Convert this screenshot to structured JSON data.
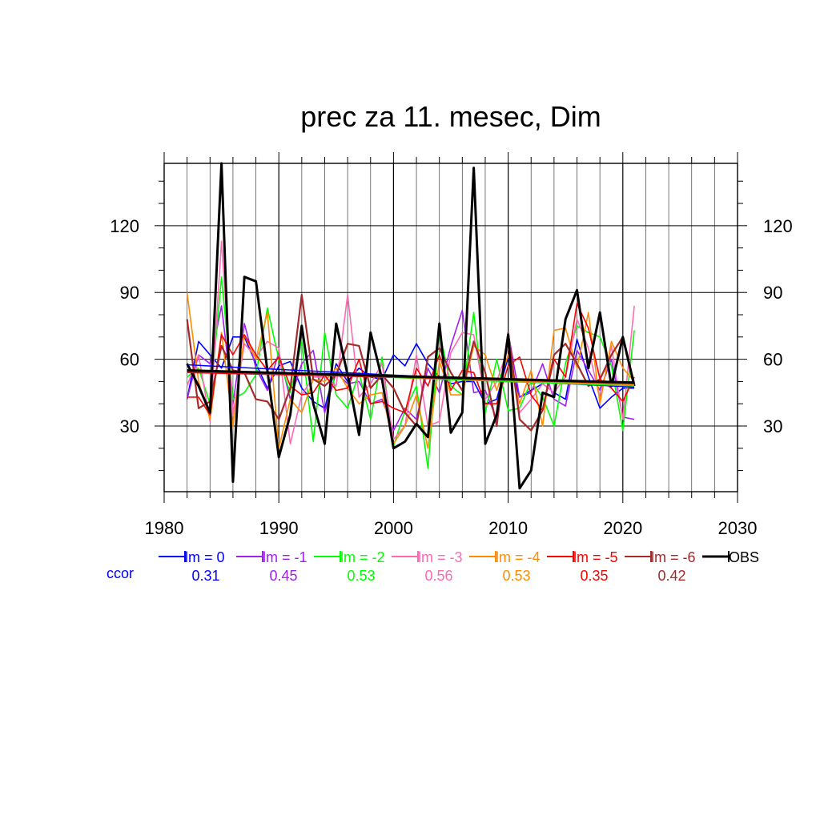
{
  "chart_data": {
    "type": "line",
    "title": "prec za 11. mesec, Dim",
    "xlabel": "",
    "ylabel": "",
    "xlim": [
      1980,
      2030
    ],
    "ylim": [
      0.5,
      148
    ],
    "x_ticks": [
      1980,
      1990,
      2000,
      2010,
      2020,
      2030
    ],
    "y_ticks": [
      30,
      60,
      90,
      120
    ],
    "grid": true,
    "legend_position": "bottom",
    "ccor_label": "ccor",
    "years": [
      1982,
      1983,
      1984,
      1985,
      1986,
      1987,
      1988,
      1989,
      1990,
      1991,
      1992,
      1993,
      1994,
      1995,
      1996,
      1997,
      1998,
      1999,
      2000,
      2001,
      2002,
      2003,
      2004,
      2005,
      2006,
      2007,
      2008,
      2009,
      2010,
      2011,
      2012,
      2013,
      2014,
      2015,
      2016,
      2017,
      2018,
      2019,
      2020,
      2021
    ],
    "series": [
      {
        "name": "lm = 0",
        "color": "#0000ff",
        "width": 1.6,
        "ccor": "0.31",
        "values": [
          42,
          68,
          62,
          56,
          70,
          70,
          58,
          47,
          57,
          59,
          47,
          41,
          38,
          58,
          50,
          56,
          52,
          51,
          62,
          57,
          67,
          58,
          52,
          49,
          50,
          50,
          40,
          42,
          61,
          43,
          46,
          49,
          45,
          42,
          69,
          52,
          38,
          43,
          47,
          47
        ],
        "trend": [
          57.5,
          47.5
        ]
      },
      {
        "name": "lm = -1",
        "color": "#a020f0",
        "width": 1.6,
        "ccor": "0.45",
        "values": [
          42,
          62,
          58,
          84,
          40,
          76,
          56,
          46,
          63,
          42,
          58,
          64,
          36,
          54,
          49,
          50,
          40,
          42,
          28,
          38,
          33,
          56,
          45,
          66,
          82,
          45,
          46,
          33,
          72,
          43,
          45,
          58,
          42,
          39,
          64,
          55,
          46,
          60,
          34,
          33
        ],
        "trend": [
          55.0,
          49.0
        ]
      },
      {
        "name": "lm = -2",
        "color": "#00ff00",
        "width": 1.6,
        "ccor": "0.53",
        "values": [
          52,
          56,
          40,
          97,
          42,
          45,
          53,
          83,
          60,
          45,
          68,
          23,
          72,
          44,
          38,
          54,
          33,
          61,
          21,
          37,
          48,
          11,
          73,
          48,
          44,
          81,
          36,
          60,
          37,
          38,
          50,
          43,
          30,
          58,
          75,
          72,
          70,
          57,
          28,
          73
        ],
        "trend": [
          55.0,
          48.0
        ]
      },
      {
        "name": "lm = -3",
        "color": "#ff69b4",
        "width": 1.6,
        "ccor": "0.56",
        "values": [
          48,
          62,
          32,
          113,
          35,
          67,
          61,
          68,
          65,
          22,
          44,
          52,
          52,
          48,
          89,
          43,
          49,
          58,
          24,
          30,
          62,
          30,
          32,
          63,
          72,
          71,
          42,
          50,
          65,
          36,
          42,
          49,
          45,
          52,
          78,
          65,
          42,
          66,
          33,
          84
        ],
        "trend": [
          55.0,
          49.0
        ]
      },
      {
        "name": "lm = -4",
        "color": "#ff8c00",
        "width": 1.6,
        "ccor": "0.53",
        "values": [
          90,
          50,
          33,
          72,
          30,
          71,
          60,
          81,
          20,
          42,
          36,
          51,
          50,
          56,
          47,
          40,
          44,
          45,
          22,
          30,
          44,
          20,
          59,
          44,
          44,
          66,
          62,
          46,
          62,
          40,
          55,
          30,
          73,
          74,
          56,
          81,
          40,
          68,
          56,
          50
        ],
        "trend": [
          55.0,
          48.5
        ]
      },
      {
        "name": "lm = -5",
        "color": "#ff0000",
        "width": 1.6,
        "ccor": "0.35",
        "values": [
          43,
          43,
          35,
          71,
          62,
          71,
          62,
          55,
          61,
          48,
          44,
          45,
          53,
          46,
          47,
          60,
          40,
          41,
          38,
          36,
          56,
          48,
          62,
          46,
          55,
          54,
          40,
          40,
          57,
          61,
          44,
          37,
          60,
          52,
          85,
          74,
          51,
          47,
          41,
          52
        ],
        "trend": [
          54.0,
          49.5
        ]
      },
      {
        "name": "lm = -6",
        "color": "#a52a2a",
        "width": 2.2,
        "ccor": "0.42",
        "values": [
          78,
          38,
          41,
          66,
          55,
          54,
          42,
          41,
          33,
          47,
          89,
          51,
          48,
          53,
          67,
          66,
          47,
          53,
          47,
          36,
          30,
          61,
          65,
          54,
          46,
          68,
          54,
          30,
          72,
          33,
          28,
          37,
          62,
          67,
          58,
          48,
          51,
          62,
          70,
          49
        ],
        "trend": [
          54.5,
          49.0
        ]
      },
      {
        "name": "OBS",
        "color": "#000000",
        "width": 3.0,
        "ccor": "",
        "values": [
          58,
          48,
          36,
          148,
          5,
          97,
          95,
          55,
          16,
          35,
          75,
          40,
          22,
          76,
          53,
          26,
          72,
          51,
          20,
          23,
          31,
          25,
          76,
          27,
          36,
          146,
          22,
          35,
          71,
          2,
          10,
          45,
          43,
          78,
          91,
          56,
          81,
          48,
          70,
          48
        ],
        "trend": [
          55.0,
          49.5
        ]
      }
    ]
  }
}
